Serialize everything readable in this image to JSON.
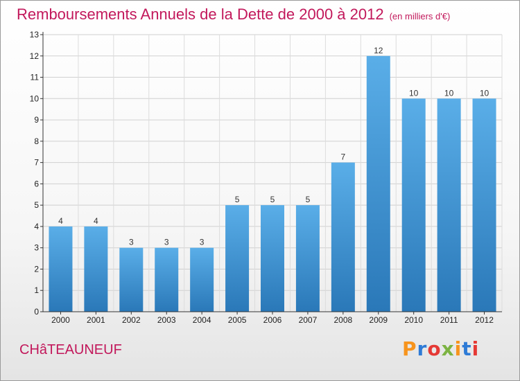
{
  "header": {
    "title": "Remboursements Annuels de la Dette de 2000 à 2012",
    "subtitle": "(en milliers d'€)"
  },
  "footer": {
    "commune": "CHâTEAUNEUF",
    "logo": "Proxiti"
  },
  "colors": {
    "bar_top": "#5aaee8",
    "bar_bottom": "#2a78b8",
    "title": "#c2185b",
    "logo": [
      "#f7941d",
      "#2e7bd6",
      "#e53935",
      "#7cb342",
      "#f7941d",
      "#2e7bd6",
      "#e53935"
    ]
  },
  "chart_data": {
    "type": "bar",
    "categories": [
      "2000",
      "2001",
      "2002",
      "2003",
      "2004",
      "2005",
      "2006",
      "2007",
      "2008",
      "2009",
      "2010",
      "2011",
      "2012"
    ],
    "values": [
      4,
      4,
      3,
      3,
      3,
      5,
      5,
      5,
      7,
      12,
      10,
      10,
      10
    ],
    "yticks": [
      0,
      1,
      2,
      3,
      4,
      5,
      6,
      7,
      8,
      9,
      10,
      11,
      12,
      13
    ],
    "ylim": [
      0,
      13
    ],
    "grid": true,
    "legend": "none"
  }
}
